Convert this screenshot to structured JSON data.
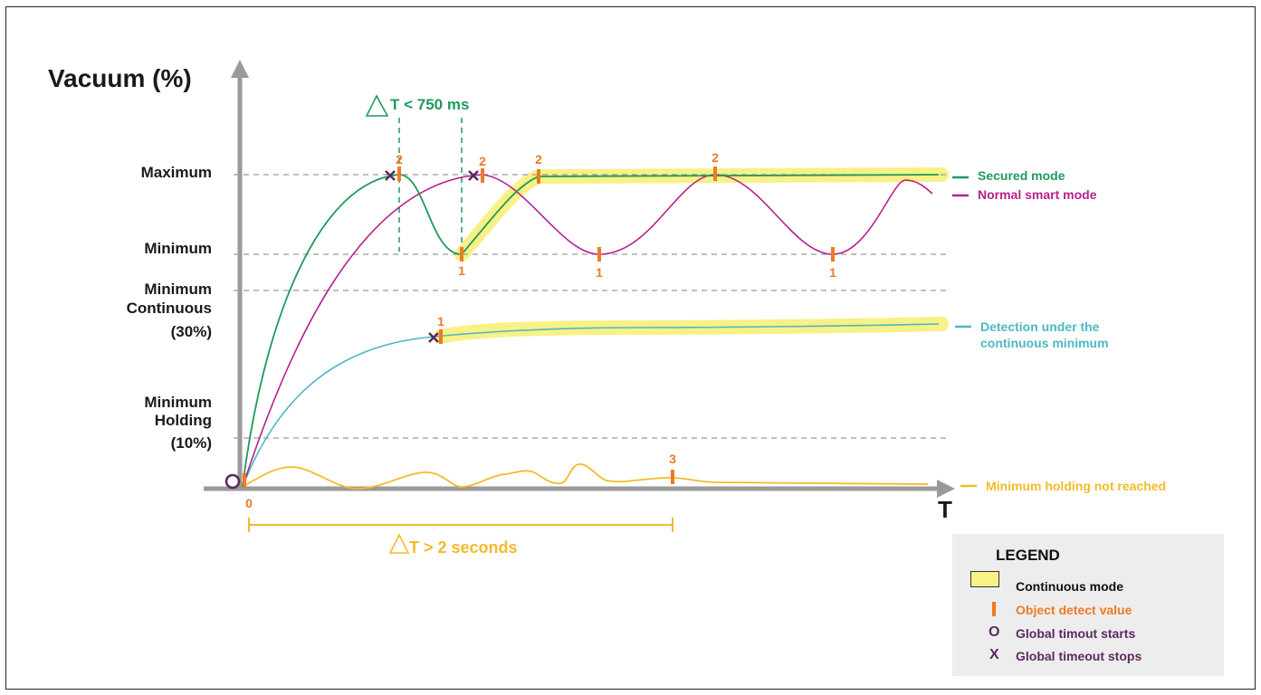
{
  "diagram": {
    "y_axis_title": "Vacuum (%)",
    "x_axis_title": "T",
    "y_levels": {
      "maximum": "Maximum",
      "minimum": "Minimum",
      "min_continuous": [
        "Minimum",
        "Continuous",
        "(30%)"
      ],
      "min_holding": [
        "Minimum",
        "Holding",
        "(10%)"
      ]
    },
    "delta_t_short": "T < 750 ms",
    "delta_t_long": "T > 2 seconds",
    "origin_marker": "0",
    "detect_labels": {
      "secured_first": "2",
      "normal_first": "2",
      "secured_rise": "2",
      "normal_peak": "2",
      "secured_min": "1",
      "normal_min_a": "1",
      "normal_min_b": "1",
      "detection_cont": "1",
      "holding_3": "3"
    },
    "series_labels": {
      "secured": "Secured mode",
      "normal": "Normal smart mode",
      "detection": [
        "Detection under the",
        "continuous minimum"
      ],
      "holding": "Minimum holding not reached"
    },
    "colors": {
      "secured": "#1f9a5b",
      "normal": "#b8208f",
      "detection": "#4cb8c4",
      "holding": "#f2bb2a",
      "detect_mark": "#ee7a26",
      "timeout": "#5b2a5e",
      "highlight": "#f7f186",
      "axis": "#9a9a9a",
      "delta_short": "#1f9a5b",
      "delta_long": "#f2bb2a"
    }
  },
  "legend": {
    "title": "LEGEND",
    "continuous_mode": "Continuous mode",
    "object_detect": "Object detect value",
    "timeout_start": "Global timout starts",
    "timeout_stop": "Global timeout stops",
    "o_glyph": "O",
    "x_glyph": "X"
  }
}
